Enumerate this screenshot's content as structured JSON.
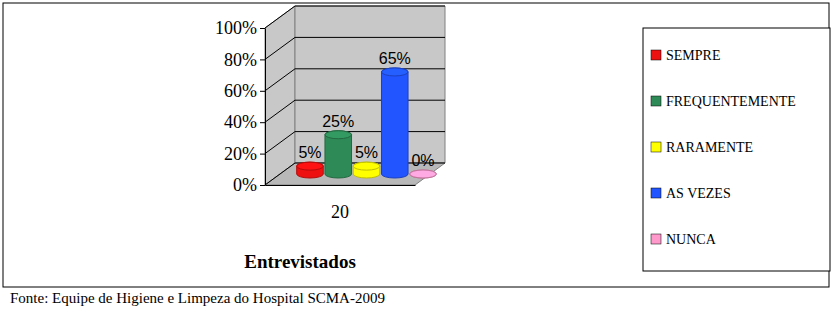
{
  "chart_data": {
    "type": "bar",
    "categories": [
      "20"
    ],
    "x_label": "Entrevistados",
    "source": "Fonte: Equipe de Higiene e Limpeza do Hospital SCMA-2009",
    "series": [
      {
        "name": "SEMPRE",
        "color": "#ee1111",
        "values": [
          5
        ],
        "value_labels": [
          "5%"
        ]
      },
      {
        "name": "FREQUENTEMENTE",
        "color": "#2e8b57",
        "values": [
          25
        ],
        "value_labels": [
          "25%"
        ]
      },
      {
        "name": "RARAMENTE",
        "color": "#ffff00",
        "values": [
          5
        ],
        "value_labels": [
          "5%"
        ]
      },
      {
        "name": "AS VEZES",
        "color": "#2255ff",
        "values": [
          65
        ],
        "value_labels": [
          "65%"
        ]
      },
      {
        "name": "NUNCA",
        "color": "#ff99cc",
        "values": [
          0
        ],
        "value_labels": [
          "0%"
        ]
      }
    ],
    "ylim": [
      0,
      100
    ],
    "yticks": [
      {
        "value": 0,
        "label": "0%"
      },
      {
        "value": 20,
        "label": "20%"
      },
      {
        "value": 40,
        "label": "40%"
      },
      {
        "value": 60,
        "label": "60%"
      },
      {
        "value": 80,
        "label": "80%"
      },
      {
        "value": 100,
        "label": "100%"
      }
    ],
    "grid": true,
    "data_labels": true,
    "legend": "right"
  }
}
